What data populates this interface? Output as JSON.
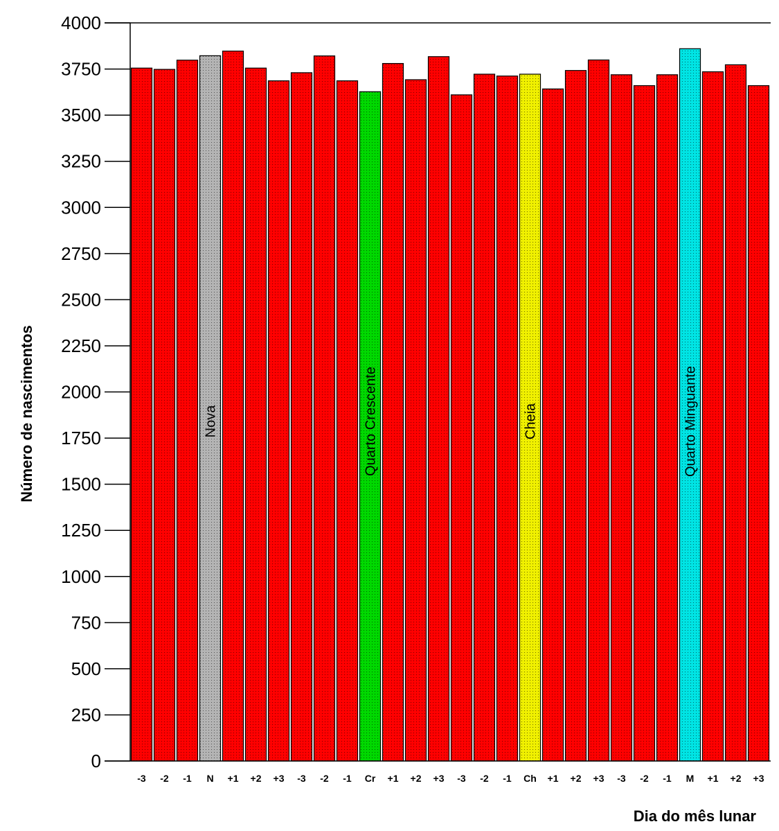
{
  "chart_data": {
    "type": "bar",
    "ylabel": "Número de nascimentos",
    "xlabel": "Dia do mês lunar",
    "ylim": [
      0,
      4000
    ],
    "yticks": [
      0,
      250,
      500,
      750,
      1000,
      1250,
      1500,
      1750,
      2000,
      2250,
      2500,
      2750,
      3000,
      3250,
      3500,
      3750,
      4000
    ],
    "grid": false,
    "legend": "none",
    "categories": [
      "-3",
      "-2",
      "-1",
      "N",
      "+1",
      "+2",
      "+3",
      "-3",
      "-2",
      "-1",
      "Cr",
      "+1",
      "+2",
      "+3",
      "-3",
      "-2",
      "-1",
      "Ch",
      "+1",
      "+2",
      "+3",
      "-3",
      "-2",
      "-1",
      "M",
      "+1",
      "+2",
      "+3"
    ],
    "values": [
      3755,
      3748,
      3798,
      3822,
      3847,
      3755,
      3686,
      3730,
      3821,
      3686,
      3627,
      3780,
      3692,
      3817,
      3610,
      3722,
      3712,
      3722,
      3642,
      3742,
      3799,
      3719,
      3660,
      3719,
      3860,
      3735,
      3773,
      3660
    ],
    "colors": {
      "default": "#ff0000",
      "N": "#b4b4b4",
      "Cr": "#00d800",
      "Ch": "#f0f000",
      "M": "#00e4e4"
    },
    "annotations": [
      {
        "category_index": 3,
        "text": "Nova"
      },
      {
        "category_index": 10,
        "text": "Quarto Crescente"
      },
      {
        "category_index": 17,
        "text": "Cheia"
      },
      {
        "category_index": 24,
        "text": "Quarto Minguante"
      }
    ]
  }
}
